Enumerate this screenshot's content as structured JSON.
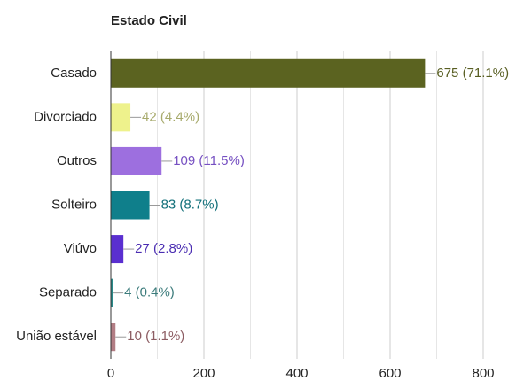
{
  "chart_data": {
    "type": "bar",
    "orientation": "horizontal",
    "title": "Estado Civil",
    "categories": [
      "Casado",
      "Divorciado",
      "Outros",
      "Solteiro",
      "Viúvo",
      "Separado",
      "União estável"
    ],
    "values": [
      675,
      42,
      109,
      83,
      27,
      4,
      10
    ],
    "value_labels": [
      "675 (71.1%)",
      "42 (4.4%)",
      "109 (11.5%)",
      "83 (8.7%)",
      "27 (2.8%)",
      "4 (0.4%)",
      "10 (1.1%)"
    ],
    "colors": [
      "#5b6320",
      "#eef28c",
      "#9d6fdf",
      "#0f7f8b",
      "#5a2fd0",
      "#2a8b8b",
      "#b27d84"
    ],
    "label_colors": [
      "#585e22",
      "#a7aa6c",
      "#7650c2",
      "#12707a",
      "#4a2db2",
      "#3b7b7b",
      "#8c5c62"
    ],
    "xlim": [
      0,
      800
    ],
    "xticks": [
      0,
      200,
      400,
      600,
      800
    ],
    "minor_xticks": [
      100,
      300,
      500,
      700
    ],
    "grid": true
  }
}
